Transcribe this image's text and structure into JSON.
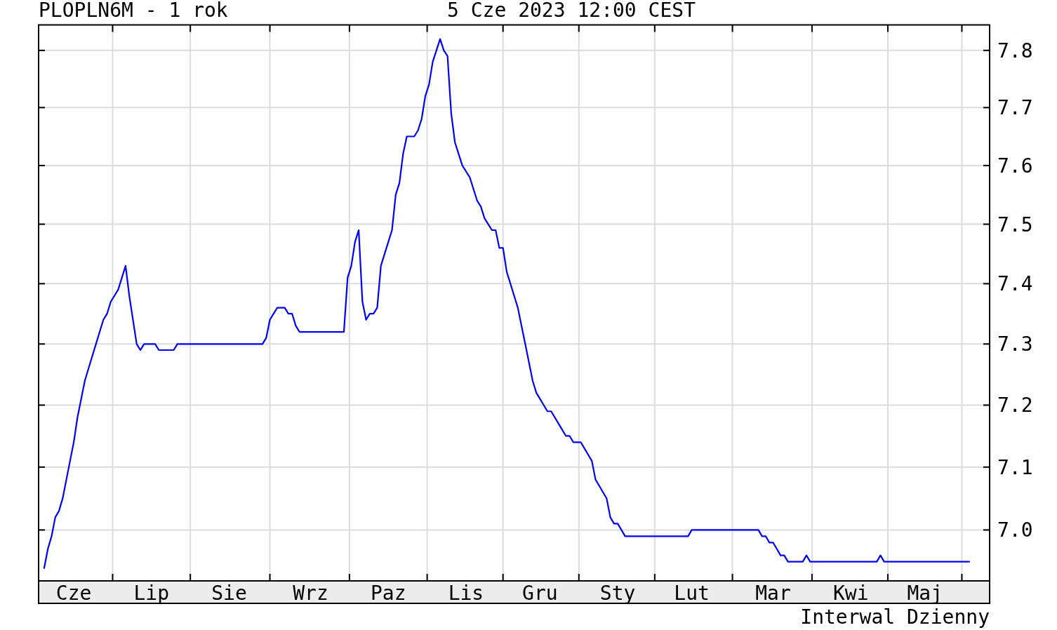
{
  "chart_data": {
    "type": "line",
    "title": "PLOPLN6M - 1 rok",
    "subtitle": "5 Cze 2023 12:00 CEST",
    "annotations": [
      "Interwal Dzienny"
    ],
    "categories": [
      null,
      null,
      null,
      null,
      null,
      null,
      null,
      null,
      "Cze",
      null,
      null,
      null,
      null,
      null,
      null,
      null,
      null,
      null,
      null,
      null,
      null,
      null,
      null,
      null,
      null,
      null,
      null,
      null,
      null,
      "Lip",
      null,
      null,
      null,
      null,
      null,
      null,
      null,
      null,
      null,
      null,
      null,
      null,
      null,
      null,
      null,
      null,
      null,
      null,
      null,
      null,
      "Sie",
      null,
      null,
      null,
      null,
      null,
      null,
      null,
      null,
      null,
      null,
      null,
      null,
      null,
      null,
      null,
      null,
      null,
      null,
      null,
      null,
      null,
      "Wrz",
      null,
      null,
      null,
      null,
      null,
      null,
      null,
      null,
      null,
      null,
      null,
      null,
      null,
      null,
      null,
      null,
      null,
      null,
      null,
      null,
      "Paz",
      null,
      null,
      null,
      null,
      null,
      null,
      null,
      null,
      null,
      null,
      null,
      null,
      null,
      null,
      null,
      null,
      null,
      null,
      null,
      null,
      "Lis",
      null,
      null,
      null,
      null,
      null,
      null,
      null,
      null,
      null,
      null,
      null,
      null,
      null,
      null,
      null,
      null,
      null,
      null,
      null,
      "Gru",
      null,
      null,
      null,
      null,
      null,
      null,
      null,
      null,
      null,
      null,
      null,
      null,
      null,
      null,
      null,
      null,
      null,
      null,
      null,
      null,
      "Sty",
      null,
      null,
      null,
      null,
      null,
      null,
      null,
      null,
      null,
      null,
      null,
      null,
      null,
      null,
      null,
      null,
      null,
      null,
      null,
      "Lut",
      null,
      null,
      null,
      null,
      null,
      null,
      null,
      null,
      null,
      null,
      null,
      null,
      null,
      null,
      null,
      null,
      null,
      null,
      null,
      null,
      null,
      "Mar",
      null,
      null,
      null,
      null,
      null,
      null,
      null,
      null,
      null,
      null,
      null,
      null,
      null,
      null,
      null,
      null,
      null,
      null,
      null,
      null,
      "Kwi",
      null,
      null,
      null,
      null,
      null,
      null,
      null,
      null,
      null,
      null,
      null,
      null,
      null,
      null,
      null,
      null,
      null,
      null,
      null,
      "Maj",
      null,
      null,
      null,
      null,
      null,
      null,
      null,
      null,
      null,
      null,
      null,
      null,
      null,
      null,
      null,
      null
    ],
    "series": [
      {
        "color": "#0000ff",
        "values": [
          6.94,
          6.97,
          6.99,
          7.02,
          7.03,
          7.05,
          7.08,
          7.11,
          7.14,
          7.18,
          7.21,
          7.24,
          7.26,
          7.28,
          7.3,
          7.32,
          7.34,
          7.35,
          7.37,
          7.38,
          7.39,
          7.41,
          7.43,
          7.38,
          7.34,
          7.3,
          7.29,
          7.3,
          7.3,
          7.3,
          7.3,
          7.29,
          7.29,
          7.29,
          7.29,
          7.29,
          7.3,
          7.3,
          7.3,
          7.3,
          7.3,
          7.3,
          7.3,
          7.3,
          7.3,
          7.3,
          7.3,
          7.3,
          7.3,
          7.3,
          7.3,
          7.3,
          7.3,
          7.3,
          7.3,
          7.3,
          7.3,
          7.3,
          7.3,
          7.3,
          7.31,
          7.34,
          7.35,
          7.36,
          7.36,
          7.36,
          7.35,
          7.35,
          7.33,
          7.32,
          7.32,
          7.32,
          7.32,
          7.32,
          7.32,
          7.32,
          7.32,
          7.32,
          7.32,
          7.32,
          7.32,
          7.32,
          7.41,
          7.43,
          7.47,
          7.49,
          7.37,
          7.34,
          7.35,
          7.35,
          7.36,
          7.43,
          7.45,
          7.47,
          7.49,
          7.55,
          7.57,
          7.62,
          7.65,
          7.65,
          7.65,
          7.66,
          7.68,
          7.72,
          7.74,
          7.78,
          7.8,
          7.82,
          7.8,
          7.79,
          7.69,
          7.64,
          7.62,
          7.6,
          7.59,
          7.58,
          7.56,
          7.54,
          7.53,
          7.51,
          7.5,
          7.49,
          7.49,
          7.46,
          7.46,
          7.42,
          7.4,
          7.38,
          7.36,
          7.33,
          7.3,
          7.27,
          7.24,
          7.22,
          7.21,
          7.2,
          7.19,
          7.19,
          7.18,
          7.17,
          7.16,
          7.15,
          7.15,
          7.14,
          7.14,
          7.14,
          7.13,
          7.12,
          7.11,
          7.08,
          7.07,
          7.06,
          7.05,
          7.02,
          7.01,
          7.01,
          7.0,
          6.99,
          6.99,
          6.99,
          6.99,
          6.99,
          6.99,
          6.99,
          6.99,
          6.99,
          6.99,
          6.99,
          6.99,
          6.99,
          6.99,
          6.99,
          6.99,
          6.99,
          6.99,
          7.0,
          7.0,
          7.0,
          7.0,
          7.0,
          7.0,
          7.0,
          7.0,
          7.0,
          7.0,
          7.0,
          7.0,
          7.0,
          7.0,
          7.0,
          7.0,
          7.0,
          7.0,
          7.0,
          6.99,
          6.99,
          6.98,
          6.98,
          6.97,
          6.96,
          6.96,
          6.95,
          6.95,
          6.95,
          6.95,
          6.95,
          6.96,
          6.95,
          6.95,
          6.95,
          6.95,
          6.95,
          6.95,
          6.95,
          6.95,
          6.95,
          6.95,
          6.95,
          6.95,
          6.95,
          6.95,
          6.95,
          6.95,
          6.95,
          6.95,
          6.95,
          6.96,
          6.95,
          6.95,
          6.95,
          6.95,
          6.95,
          6.95,
          6.95,
          6.95,
          6.95,
          6.95,
          6.95,
          6.95,
          6.95,
          6.95,
          6.95,
          6.95,
          6.95,
          6.95,
          6.95,
          6.95,
          6.95,
          6.95,
          6.95,
          6.95,
          null,
          null,
          null,
          null
        ]
      }
    ],
    "ylim": [
      6.92,
      7.845
    ],
    "yticks": [
      {
        "value": 7,
        "label": "7.0"
      },
      7.1,
      7.2,
      7.3,
      7.4,
      7.5,
      7.6,
      7.7,
      7.8
    ],
    "log": true,
    "grid": true
  }
}
